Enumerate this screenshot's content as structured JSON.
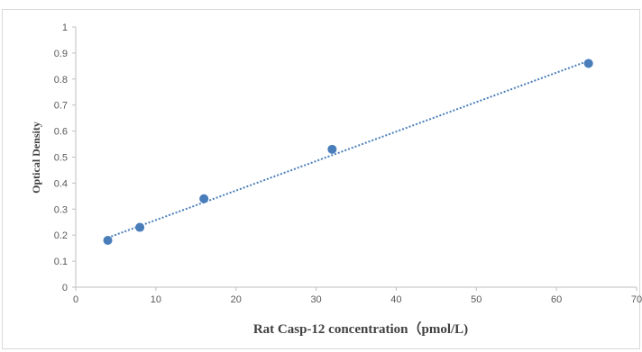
{
  "chart_data": {
    "type": "scatter",
    "title": "",
    "xlabel": "Rat Casp-12 concentration（pmol/L)",
    "ylabel": "Optical Density",
    "xlim": [
      0,
      70
    ],
    "ylim": [
      0,
      1
    ],
    "x_ticks": [
      "0",
      "10",
      "20",
      "30",
      "40",
      "50",
      "60",
      "70"
    ],
    "y_ticks": [
      "0",
      "0.1",
      "0.2",
      "0.3",
      "0.4",
      "0.5",
      "0.6",
      "0.7",
      "0.8",
      "0.9",
      "1"
    ],
    "grid": false,
    "legend": "none",
    "series": [
      {
        "x": [
          4,
          8,
          16,
          32,
          64
        ],
        "y": [
          0.18,
          0.23,
          0.34,
          0.53,
          0.86
        ],
        "marker_color": "#4a7ebb"
      }
    ],
    "trendline": {
      "type": "linear",
      "style": "dotted",
      "color": "#4a7ebb",
      "x_range": [
        4,
        64
      ],
      "y_range": [
        0.19,
        0.87
      ]
    },
    "colors": {
      "axis": "#bfbfbf",
      "frame": "#d9d9d9"
    }
  }
}
